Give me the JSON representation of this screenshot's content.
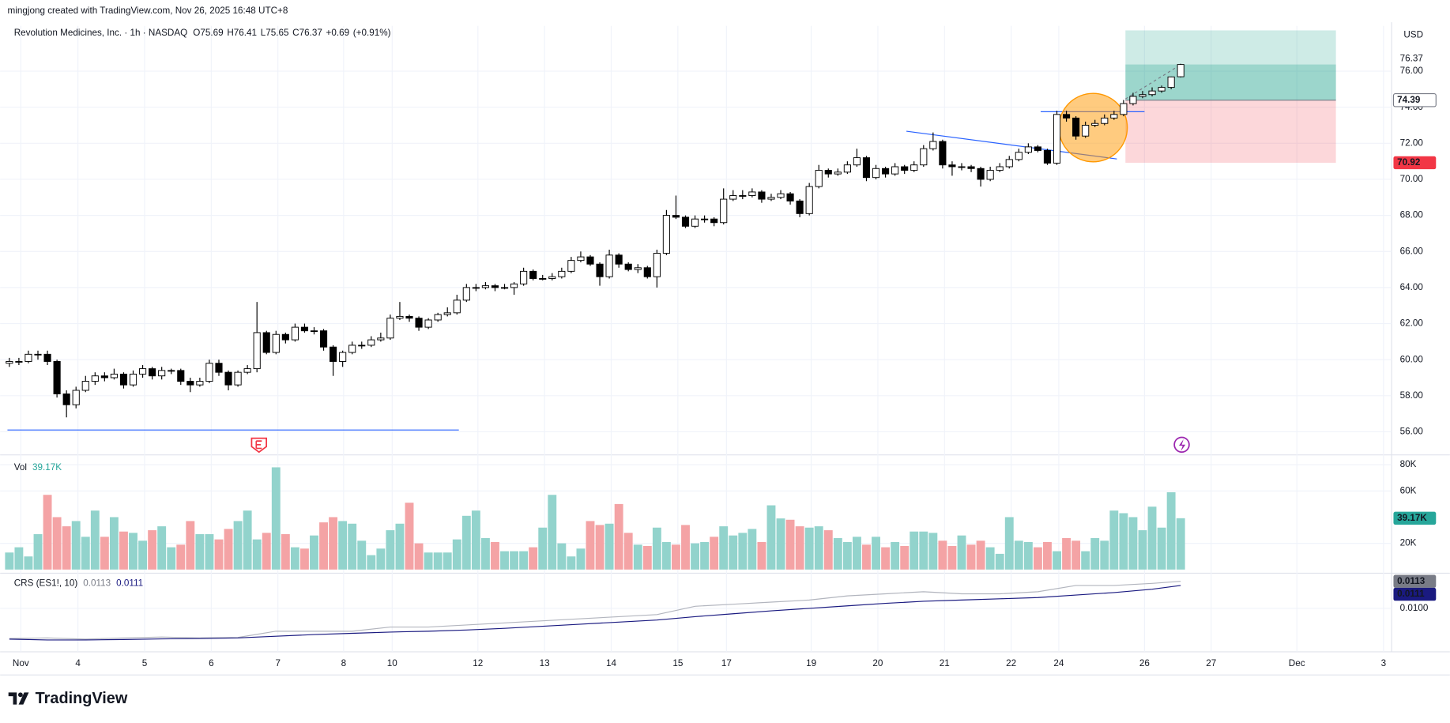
{
  "chart_data": {
    "type": "candlestick",
    "credit": "mingjong created with TradingView.com, Nov 26, 2025 16:48 UTC+8",
    "title": "Revolution Medicines, Inc. · 1h · NASDAQ",
    "ohlc_letters": [
      "O",
      "H",
      "L",
      "C"
    ],
    "change": {
      "value": 0.69,
      "label": "+0.69"
    },
    "change_pct": {
      "value": 0.91,
      "label": "(+0.91%)"
    },
    "currency": "USD",
    "logo": "TradingView",
    "up_color": "#ffffff",
    "down_color": "#000000",
    "wick_color": "#000000",
    "grid": true,
    "xlim": [
      -0.97,
      145.15
    ],
    "xticks": [
      {
        "value": 1.2,
        "label": "Nov"
      },
      {
        "value": 7.2,
        "label": "4"
      },
      {
        "value": 14.2,
        "label": "5"
      },
      {
        "value": 21.2,
        "label": "6"
      },
      {
        "value": 28.2,
        "label": "7"
      },
      {
        "value": 35.1,
        "label": "8"
      },
      {
        "value": 40.2,
        "label": "10"
      },
      {
        "value": 49.2,
        "label": "12"
      },
      {
        "value": 56.2,
        "label": "13"
      },
      {
        "value": 63.2,
        "label": "14"
      },
      {
        "value": 70.2,
        "label": "15"
      },
      {
        "value": 75.3,
        "label": "17"
      },
      {
        "value": 84.2,
        "label": "19"
      },
      {
        "value": 91.2,
        "label": "20"
      },
      {
        "value": 98.2,
        "label": "21"
      },
      {
        "value": 105.2,
        "label": "22"
      },
      {
        "value": 110.2,
        "label": "24"
      },
      {
        "value": 119.2,
        "label": "26"
      },
      {
        "value": 126.2,
        "label": "27"
      },
      {
        "value": 135.2,
        "label": "Dec"
      },
      {
        "value": 144.3,
        "label": "3"
      }
    ],
    "ylim": [
      54.72,
      78.51
    ],
    "yticks": [
      {
        "value": 56,
        "label": "56.00"
      },
      {
        "value": 58,
        "label": "58.00"
      },
      {
        "value": 60,
        "label": "60.00"
      },
      {
        "value": 62,
        "label": "62.00"
      },
      {
        "value": 64,
        "label": "64.00"
      },
      {
        "value": 66,
        "label": "66.00"
      },
      {
        "value": 68,
        "label": "68.00"
      },
      {
        "value": 70,
        "label": "70.00"
      },
      {
        "value": 72,
        "label": "72.00"
      },
      {
        "value": 74,
        "label": "74.00"
      },
      {
        "value": 76,
        "label": "76.00"
      }
    ],
    "candles": [
      [
        59.8,
        60.1,
        59.6,
        59.9
      ],
      [
        59.9,
        60.1,
        59.7,
        59.9
      ],
      [
        59.9,
        60.5,
        59.8,
        60.3
      ],
      [
        60.3,
        60.5,
        60.0,
        60.3
      ],
      [
        60.3,
        60.5,
        59.7,
        59.9
      ],
      [
        59.9,
        60.0,
        57.9,
        58.1
      ],
      [
        58.1,
        58.3,
        56.8,
        57.5
      ],
      [
        57.5,
        58.5,
        57.3,
        58.3
      ],
      [
        58.3,
        59.1,
        58.2,
        58.8
      ],
      [
        58.8,
        59.3,
        58.6,
        59.1
      ],
      [
        59.1,
        59.3,
        58.8,
        59.0
      ],
      [
        59.0,
        59.5,
        58.9,
        59.2
      ],
      [
        59.2,
        59.3,
        58.4,
        58.6
      ],
      [
        58.6,
        59.4,
        58.5,
        59.2
      ],
      [
        59.2,
        59.7,
        59.0,
        59.5
      ],
      [
        59.5,
        59.6,
        58.9,
        59.1
      ],
      [
        59.1,
        59.6,
        58.9,
        59.4
      ],
      [
        59.4,
        59.5,
        59.2,
        59.4
      ],
      [
        59.4,
        59.5,
        58.6,
        58.8
      ],
      [
        58.8,
        59.0,
        58.2,
        58.6
      ],
      [
        58.6,
        59.0,
        58.5,
        58.8
      ],
      [
        58.8,
        60.0,
        58.7,
        59.8
      ],
      [
        59.8,
        60.0,
        59.1,
        59.3
      ],
      [
        59.3,
        59.4,
        58.3,
        58.6
      ],
      [
        58.6,
        59.4,
        58.5,
        59.3
      ],
      [
        59.3,
        59.7,
        59.2,
        59.5
      ],
      [
        59.5,
        63.2,
        59.3,
        61.5
      ],
      [
        61.5,
        61.6,
        60.3,
        60.4
      ],
      [
        60.4,
        61.6,
        60.3,
        61.4
      ],
      [
        61.4,
        61.5,
        60.9,
        61.1
      ],
      [
        61.1,
        62.0,
        61.0,
        61.8
      ],
      [
        61.8,
        62.0,
        61.5,
        61.6
      ],
      [
        61.6,
        61.8,
        61.4,
        61.6
      ],
      [
        61.6,
        61.7,
        60.5,
        60.7
      ],
      [
        60.7,
        60.8,
        59.1,
        59.9
      ],
      [
        59.9,
        60.5,
        59.6,
        60.4
      ],
      [
        60.4,
        61.0,
        60.3,
        60.8
      ],
      [
        60.8,
        61.0,
        60.6,
        60.8
      ],
      [
        60.8,
        61.3,
        60.7,
        61.1
      ],
      [
        61.1,
        61.5,
        61.0,
        61.2
      ],
      [
        61.2,
        62.5,
        61.1,
        62.3
      ],
      [
        62.3,
        63.2,
        62.2,
        62.4
      ],
      [
        62.4,
        62.5,
        62.1,
        62.3
      ],
      [
        62.3,
        62.4,
        61.6,
        61.8
      ],
      [
        61.8,
        62.3,
        61.7,
        62.2
      ],
      [
        62.2,
        62.6,
        62.1,
        62.5
      ],
      [
        62.5,
        62.9,
        62.4,
        62.6
      ],
      [
        62.6,
        63.6,
        62.5,
        63.3
      ],
      [
        63.3,
        64.2,
        63.2,
        64.0
      ],
      [
        64.0,
        64.2,
        63.8,
        64.0
      ],
      [
        64.0,
        64.3,
        63.9,
        64.1
      ],
      [
        64.1,
        64.2,
        63.8,
        64.0
      ],
      [
        64.0,
        64.2,
        63.9,
        64.0
      ],
      [
        64.0,
        64.3,
        63.6,
        64.2
      ],
      [
        64.2,
        65.1,
        64.1,
        64.9
      ],
      [
        64.9,
        65.0,
        64.4,
        64.5
      ],
      [
        64.5,
        64.7,
        64.4,
        64.5
      ],
      [
        64.5,
        64.8,
        64.4,
        64.6
      ],
      [
        64.6,
        65.1,
        64.5,
        64.9
      ],
      [
        64.9,
        65.7,
        64.8,
        65.5
      ],
      [
        65.5,
        66.0,
        65.4,
        65.7
      ],
      [
        65.7,
        65.8,
        65.2,
        65.3
      ],
      [
        65.3,
        65.4,
        64.1,
        64.6
      ],
      [
        64.6,
        66.1,
        64.5,
        65.8
      ],
      [
        65.8,
        65.9,
        65.1,
        65.3
      ],
      [
        65.3,
        65.4,
        64.9,
        65.0
      ],
      [
        65.0,
        65.3,
        64.8,
        65.1
      ],
      [
        65.1,
        65.2,
        64.5,
        64.6
      ],
      [
        64.6,
        66.1,
        64.0,
        65.9
      ],
      [
        65.9,
        68.3,
        65.8,
        68.0
      ],
      [
        68.0,
        69.1,
        67.8,
        67.9
      ],
      [
        67.9,
        68.0,
        67.3,
        67.4
      ],
      [
        67.4,
        68.0,
        67.3,
        67.8
      ],
      [
        67.8,
        68.0,
        67.6,
        67.8
      ],
      [
        67.8,
        67.9,
        67.4,
        67.6
      ],
      [
        67.6,
        69.5,
        67.5,
        68.9
      ],
      [
        68.9,
        69.4,
        68.8,
        69.1
      ],
      [
        69.1,
        69.4,
        68.9,
        69.1
      ],
      [
        69.1,
        69.5,
        69.0,
        69.3
      ],
      [
        69.3,
        69.4,
        68.7,
        68.9
      ],
      [
        68.9,
        69.2,
        68.8,
        69.0
      ],
      [
        69.0,
        69.4,
        68.9,
        69.2
      ],
      [
        69.2,
        69.3,
        68.6,
        68.8
      ],
      [
        68.8,
        68.9,
        67.9,
        68.1
      ],
      [
        68.1,
        69.8,
        68.0,
        69.6
      ],
      [
        69.6,
        70.8,
        69.5,
        70.5
      ],
      [
        70.5,
        70.6,
        70.1,
        70.3
      ],
      [
        70.3,
        70.6,
        70.2,
        70.4
      ],
      [
        70.4,
        71.0,
        70.3,
        70.8
      ],
      [
        70.8,
        71.7,
        70.7,
        71.2
      ],
      [
        71.2,
        71.3,
        69.9,
        70.1
      ],
      [
        70.1,
        70.8,
        70.0,
        70.6
      ],
      [
        70.6,
        70.7,
        70.1,
        70.3
      ],
      [
        70.3,
        70.9,
        70.2,
        70.7
      ],
      [
        70.7,
        70.8,
        70.3,
        70.5
      ],
      [
        70.5,
        71.0,
        70.4,
        70.8
      ],
      [
        70.8,
        71.9,
        70.7,
        71.7
      ],
      [
        71.7,
        72.6,
        71.6,
        72.1
      ],
      [
        72.1,
        72.2,
        70.6,
        70.8
      ],
      [
        70.8,
        71.0,
        70.2,
        70.7
      ],
      [
        70.7,
        70.9,
        70.5,
        70.7
      ],
      [
        70.7,
        70.8,
        70.4,
        70.6
      ],
      [
        70.6,
        70.7,
        69.6,
        70.0
      ],
      [
        70.0,
        70.7,
        69.9,
        70.5
      ],
      [
        70.5,
        70.9,
        70.4,
        70.7
      ],
      [
        70.7,
        71.3,
        70.6,
        71.1
      ],
      [
        71.1,
        71.7,
        71.0,
        71.5
      ],
      [
        71.5,
        72.0,
        71.4,
        71.8
      ],
      [
        71.8,
        71.9,
        71.5,
        71.6
      ],
      [
        71.6,
        71.7,
        70.8,
        70.9
      ],
      [
        70.9,
        73.8,
        70.8,
        73.6
      ],
      [
        73.6,
        73.8,
        73.2,
        73.4
      ],
      [
        73.4,
        73.5,
        72.2,
        72.4
      ],
      [
        72.4,
        73.2,
        72.3,
        73.0
      ],
      [
        73.0,
        73.3,
        72.9,
        73.1
      ],
      [
        73.1,
        73.6,
        73.0,
        73.4
      ],
      [
        73.4,
        73.8,
        73.3,
        73.6
      ],
      [
        73.6,
        74.4,
        73.5,
        74.2
      ],
      [
        74.2,
        74.8,
        74.1,
        74.6
      ],
      [
        74.6,
        74.9,
        74.5,
        74.7
      ],
      [
        74.7,
        75.1,
        74.6,
        74.9
      ],
      [
        74.9,
        75.2,
        74.8,
        75.1
      ],
      [
        75.1,
        75.7,
        75.0,
        75.68
      ],
      [
        75.69,
        76.41,
        75.65,
        76.37
      ]
    ],
    "volume": {
      "name": "Vol",
      "up_color": "#92d3cc",
      "down_color": "#f4a3a5",
      "badge_color": "#26a69a",
      "values": [
        13000,
        17000,
        10000,
        27000,
        57000,
        40000,
        33000,
        37000,
        25000,
        45000,
        25000,
        40000,
        29000,
        28000,
        22000,
        30000,
        33000,
        17000,
        19000,
        37000,
        27000,
        27000,
        23000,
        31000,
        37000,
        45000,
        23000,
        28000,
        78000,
        27000,
        17000,
        16000,
        26000,
        36000,
        40000,
        37000,
        35000,
        22000,
        11000,
        16000,
        30000,
        35000,
        51000,
        20000,
        13000,
        13000,
        13000,
        23000,
        41000,
        45000,
        24000,
        21000,
        14000,
        14000,
        14000,
        17000,
        32000,
        57000,
        20000,
        10000,
        16000,
        37000,
        34000,
        35000,
        50000,
        28000,
        19000,
        18000,
        32000,
        21000,
        19000,
        34000,
        20000,
        21000,
        25000,
        33000,
        26000,
        28000,
        31000,
        21000,
        49000,
        39000,
        38000,
        33000,
        32000,
        33000,
        30000,
        24000,
        21000,
        25000,
        19000,
        25000,
        17000,
        21000,
        18000,
        29000,
        29000,
        28000,
        22000,
        18000,
        26000,
        19000,
        22000,
        17000,
        12000,
        40000,
        22000,
        21000,
        17000,
        21000,
        14000,
        24000,
        22000,
        14000,
        24000,
        22000,
        45000,
        43000,
        40000,
        30000,
        48000,
        32000,
        59000,
        39170
      ],
      "last_label": "39.17K",
      "ylim": [
        -2800,
        87500
      ],
      "yticks": [
        {
          "value": 20000,
          "label": "20K"
        },
        {
          "value": 60000,
          "label": "60K"
        },
        {
          "value": 80000,
          "label": "80K"
        }
      ]
    },
    "crs": {
      "name": "CRS (ES1!, 10)",
      "x": [
        0,
        4,
        8,
        12,
        16,
        20,
        24,
        28,
        32,
        36,
        40,
        44,
        48,
        52,
        56,
        60,
        64,
        68,
        72,
        76,
        80,
        84,
        88,
        92,
        96,
        100,
        104,
        108,
        112,
        116,
        120,
        123
      ],
      "series": [
        {
          "color": "#b2b5be",
          "values": [
            0.00855,
            0.00858,
            0.00852,
            0.00858,
            0.00862,
            0.00858,
            0.0086,
            0.0089,
            0.0089,
            0.0089,
            0.0091,
            0.0091,
            0.0092,
            0.0093,
            0.0094,
            0.0095,
            0.0096,
            0.0097,
            0.0101,
            0.0102,
            0.0103,
            0.0104,
            0.0106,
            0.0107,
            0.0108,
            0.0107,
            0.0107,
            0.0108,
            0.0111,
            0.0111,
            0.0112,
            0.0113
          ]
        },
        {
          "color": "#1a1a80",
          "values": [
            0.00852,
            0.00848,
            0.00848,
            0.0085,
            0.00853,
            0.00855,
            0.00858,
            0.00866,
            0.00874,
            0.0088,
            0.00886,
            0.0089,
            0.00896,
            0.00904,
            0.00914,
            0.00924,
            0.00934,
            0.00944,
            0.0096,
            0.00974,
            0.00988,
            0.01,
            0.01012,
            0.01024,
            0.01034,
            0.0104,
            0.01046,
            0.01052,
            0.01064,
            0.01076,
            0.01092,
            0.0111
          ]
        }
      ],
      "ylim": [
        0.00791,
        0.01169
      ],
      "yticks": [
        {
          "value": 0.01,
          "label": "0.0100"
        }
      ]
    },
    "annotations": {
      "support_line": {
        "color": "#2962ff",
        "x": [
          -0.2,
          47.2
        ],
        "y": [
          56.1,
          56.1
        ]
      },
      "trend_line": {
        "color": "#2962ff",
        "x": [
          94.2,
          116.3
        ],
        "y": [
          72.67,
          71.13
        ]
      },
      "resistance_line": {
        "color": "#2962ff",
        "x": [
          108.3,
          119.2
        ],
        "y": [
          73.75,
          73.75
        ]
      },
      "highlight": {
        "color": "#ff9800",
        "x": 113.8,
        "y": 72.87
      },
      "projection": {
        "color": "#787b86",
        "x": [
          117.2,
          123
        ],
        "y": [
          74.46,
          76.36
        ]
      },
      "position": {
        "x": [
          117.2,
          139.3
        ],
        "entry": 74.39,
        "stop": 70.92,
        "target": 78.26,
        "profit_color": "#089981",
        "loss_color": "#f23645",
        "entry_color": "#787b86"
      }
    }
  }
}
